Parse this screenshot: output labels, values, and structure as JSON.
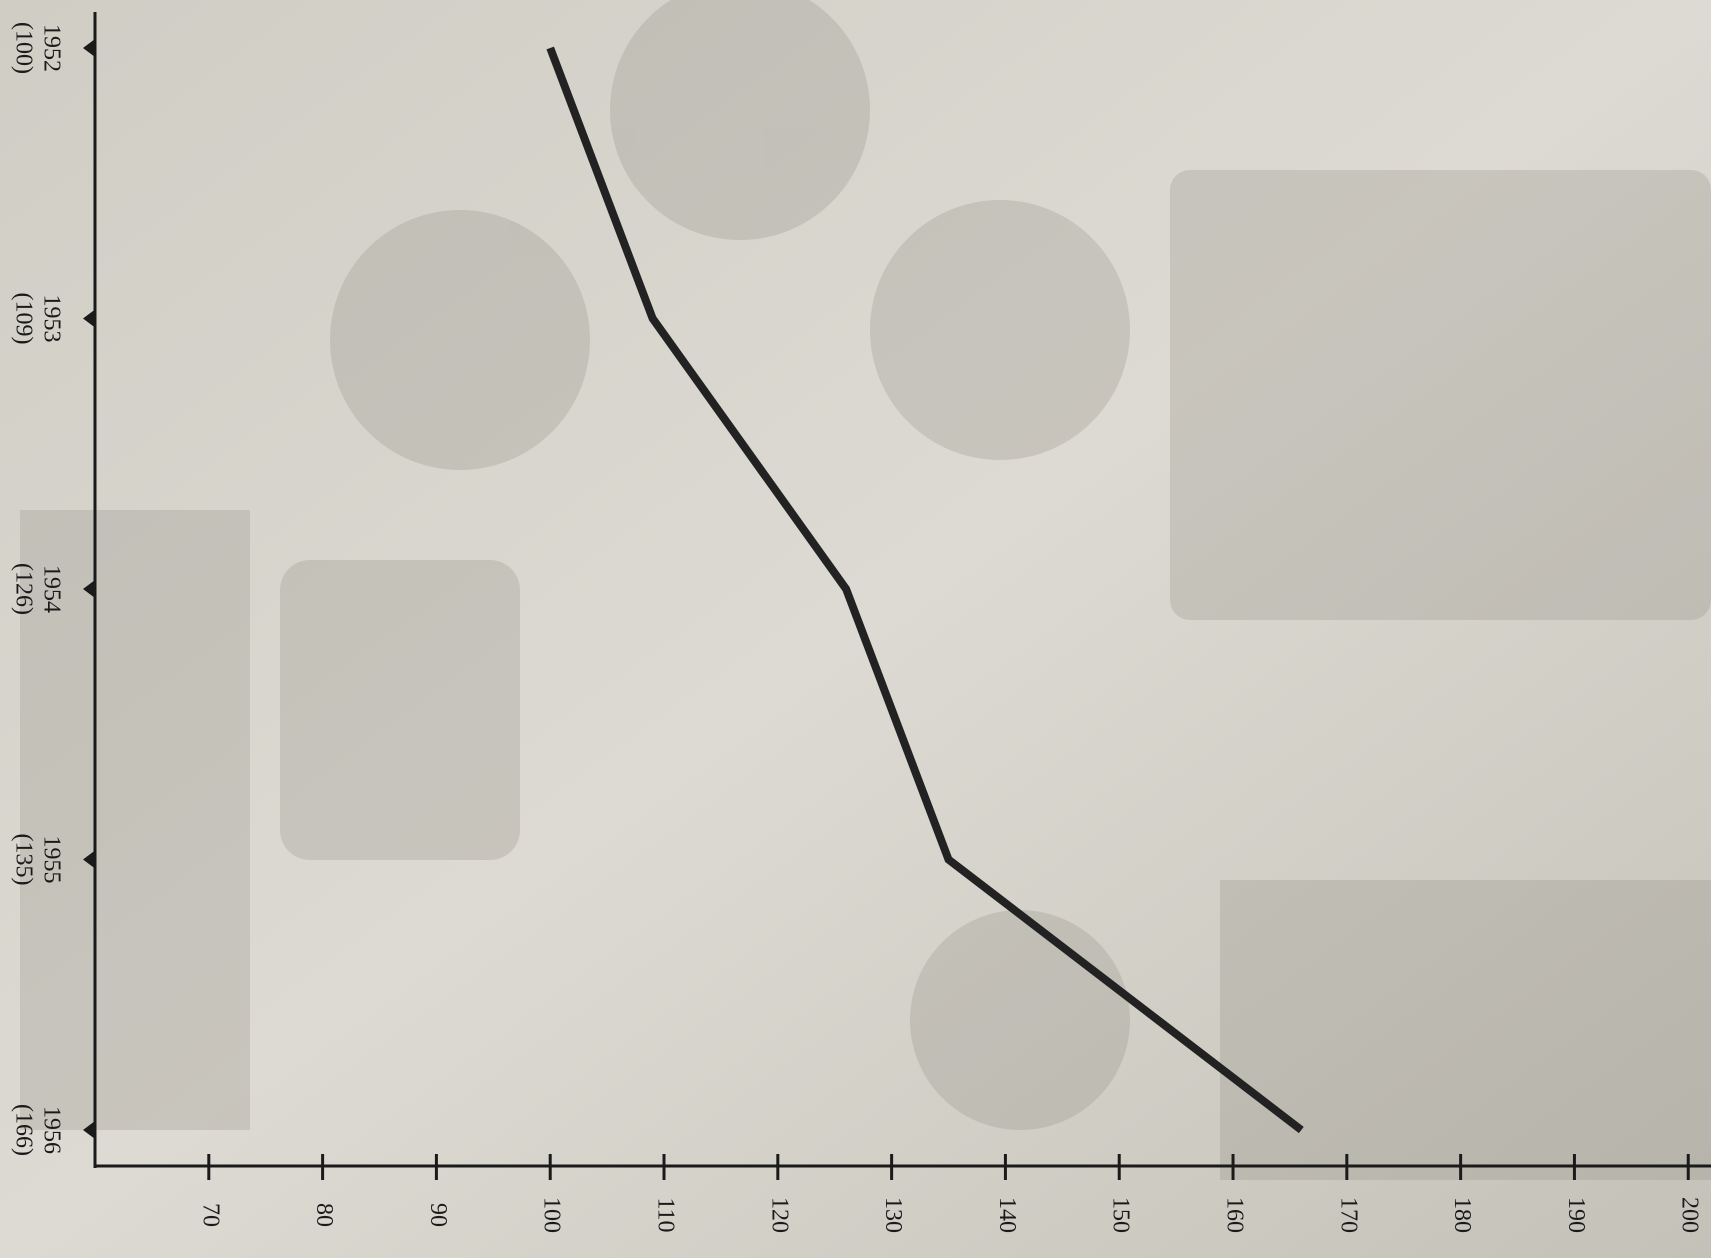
{
  "chart_data": {
    "type": "line",
    "categories": [
      "1952",
      "1953",
      "1954",
      "1955",
      "1956"
    ],
    "values": [
      100,
      109,
      126,
      135,
      166
    ],
    "value_labels": [
      "(100)",
      "(109)",
      "(126)",
      "(135)",
      "(166)"
    ],
    "color": "#222222",
    "xlim": [
      60,
      202
    ],
    "xticks": [
      70,
      80,
      90,
      100,
      110,
      120,
      130,
      140,
      150,
      160,
      170,
      180,
      190,
      200
    ]
  }
}
